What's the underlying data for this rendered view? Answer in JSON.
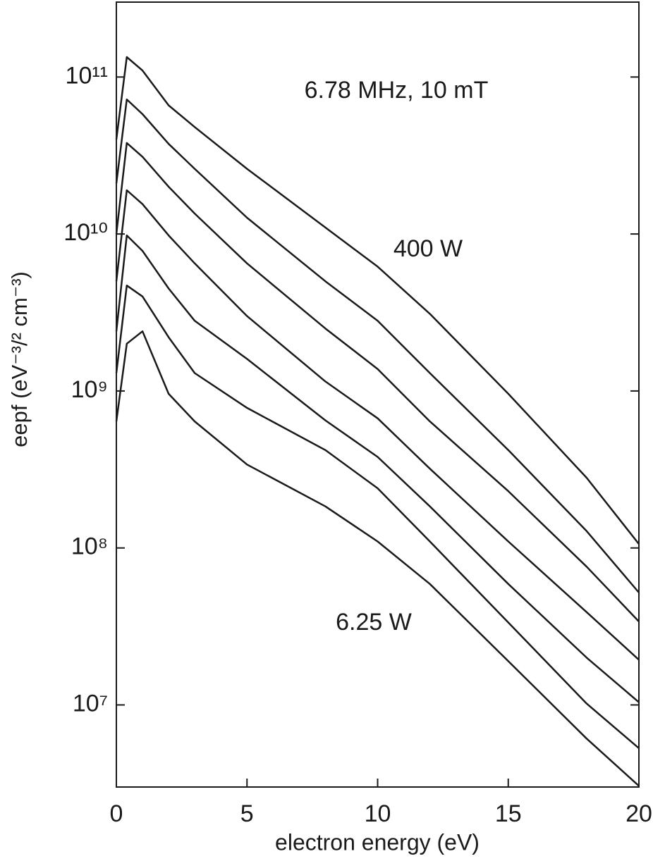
{
  "chart_data": {
    "type": "line",
    "xlabel": "electron energy (eV)",
    "ylabel": "eepf (eV⁻³/² cm⁻³)",
    "annotations": [
      "6.78 MHz, 10 mT",
      "400 W",
      "6.25 W"
    ],
    "yscale": "log",
    "x": [
      0,
      0.4,
      1,
      2,
      3,
      5,
      8,
      10,
      12,
      15,
      18,
      20
    ],
    "series": [
      {
        "color": "#1a1a1a",
        "values": [
          40000000000.0,
          134000000000.0,
          110000000000.0,
          66000000000.0,
          48000000000.0,
          26000000000.0,
          11000000000.0,
          6200000000.0,
          3100000000.0,
          960000000.0,
          280000000.0,
          106000000.0
        ]
      },
      {
        "color": "#1a1a1a",
        "values": [
          21000000000.0,
          72000000000.0,
          58000000000.0,
          37500000000.0,
          26000000000.0,
          12700000000.0,
          5000000000.0,
          2800000000.0,
          1300000000.0,
          420000000.0,
          128000000.0,
          52000000.0
        ]
      },
      {
        "color": "#1a1a1a",
        "values": [
          10000000000.0,
          38000000000.0,
          31000000000.0,
          20000000000.0,
          13500000000.0,
          6500000000.0,
          2500000000.0,
          1380000000.0,
          640000000.0,
          230000000.0,
          76000000.0,
          34000000.0
        ]
      },
      {
        "color": "#1a1a1a",
        "values": [
          5000000000.0,
          19000000000.0,
          15500000000.0,
          9800000000.0,
          6500000000.0,
          3000000000.0,
          1150000000.0,
          670000000.0,
          320000000.0,
          110000000.0,
          39000000.0,
          19400000.0
        ]
      },
      {
        "color": "#1a1a1a",
        "values": [
          2400000000.0,
          9800000000.0,
          7800000000.0,
          4500000000.0,
          2800000000.0,
          1600000000.0,
          650000000.0,
          380000000.0,
          184000000.0,
          59000000.0,
          20000000.0,
          10400000.0
        ]
      },
      {
        "color": "#1a1a1a",
        "values": [
          1300000000.0,
          4700000000.0,
          4000000000.0,
          2200000000.0,
          1300000000.0,
          780000000.0,
          420000000.0,
          240000000.0,
          110000000.0,
          33500000.0,
          10200000.0,
          5300000.0
        ]
      },
      {
        "color": "#1a1a1a",
        "values": [
          640000000.0,
          2000000000.0,
          2400000000.0,
          960000000.0,
          640000000.0,
          340000000.0,
          184000000.0,
          110000000.0,
          59000000.0,
          19000000.0,
          6100000.0,
          3050000.0
        ]
      }
    ],
    "xlim": [
      0,
      20
    ],
    "xticks": [
      0,
      5,
      10,
      15,
      20
    ],
    "ylim": [
      3000000.0,
      300000000000.0
    ],
    "yticks": [
      {
        "value": 10000000.0,
        "label": "10⁷"
      },
      {
        "value": 100000000.0,
        "label": "10⁸"
      },
      {
        "value": 1000000000.0,
        "label": "10⁹"
      },
      {
        "value": 10000000000.0,
        "label": "10¹⁰"
      },
      {
        "value": 100000000000.0,
        "label": "10¹¹"
      }
    ]
  }
}
